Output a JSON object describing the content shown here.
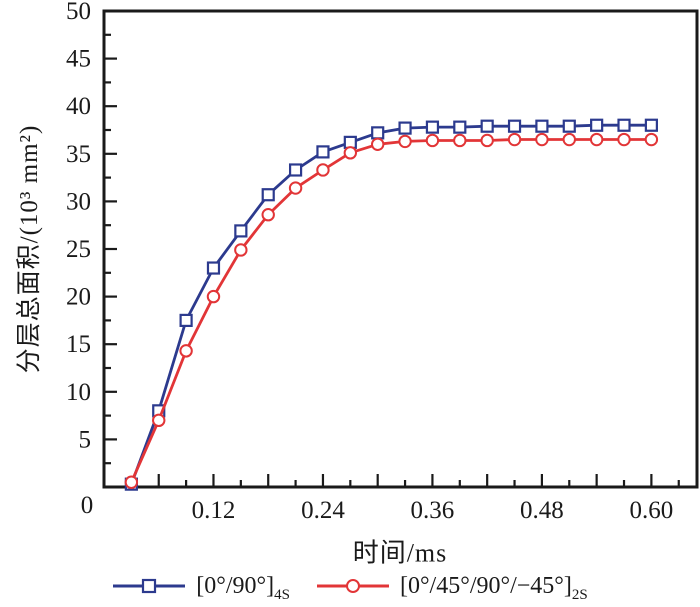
{
  "chart_data": {
    "type": "line",
    "title": "",
    "xlabel": "时间/ms",
    "ylabel": "分层总面积/(10³ mm²)",
    "origin_label": "0",
    "background": "#ffffff",
    "axis_color": "#1a1a1a",
    "grid": false,
    "legend_position": "bottom",
    "x_axis": {
      "range": [
        0,
        0.65
      ],
      "tick_values": [
        0.12,
        0.24,
        0.36,
        0.48,
        0.6
      ],
      "tick_labels": [
        "0.12",
        "0.24",
        "0.36",
        "0.48",
        "0.60"
      ],
      "minor_step": 0.03,
      "medium_step": 0.06
    },
    "y_axis": {
      "range": [
        0,
        50
      ],
      "tick_values": [
        5,
        10,
        15,
        20,
        25,
        30,
        35,
        40,
        45,
        50
      ],
      "tick_labels": [
        "5",
        "10",
        "15",
        "20",
        "25",
        "30",
        "35",
        "40",
        "45",
        "50"
      ],
      "minor_step": 2.5,
      "major_step": 5
    },
    "x": [
      0.03,
      0.06,
      0.09,
      0.12,
      0.15,
      0.18,
      0.21,
      0.24,
      0.27,
      0.3,
      0.33,
      0.36,
      0.39,
      0.42,
      0.45,
      0.48,
      0.51,
      0.54,
      0.57,
      0.6
    ],
    "series": [
      {
        "name": "[0°/90°]4S",
        "label_main": "[0°/90°]",
        "label_sub": "4S",
        "marker": "square",
        "color": "#2c3a8e",
        "values": [
          0.3,
          8.0,
          17.5,
          23.0,
          26.9,
          30.7,
          33.3,
          35.2,
          36.2,
          37.2,
          37.7,
          37.8,
          37.8,
          37.9,
          37.9,
          37.9,
          37.9,
          38.0,
          38.0,
          38.0
        ]
      },
      {
        "name": "[0°/45°/90°/−45°]2S",
        "label_main": "[0°/45°/90°/−45°]",
        "label_sub": "2S",
        "marker": "circle",
        "color": "#e23537",
        "values": [
          0.5,
          7.0,
          14.3,
          20.0,
          24.9,
          28.6,
          31.4,
          33.3,
          35.1,
          36.0,
          36.3,
          36.4,
          36.4,
          36.4,
          36.5,
          36.5,
          36.5,
          36.5,
          36.5,
          36.5
        ]
      }
    ]
  }
}
